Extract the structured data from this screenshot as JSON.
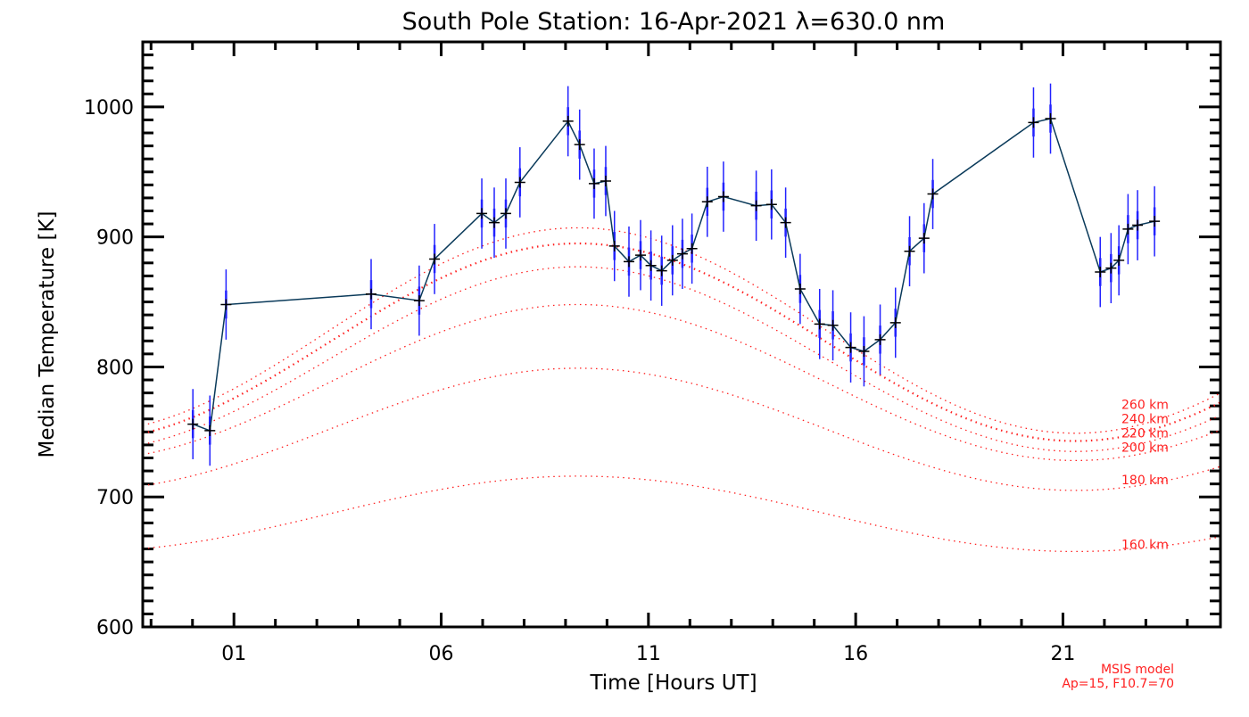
{
  "chart_data": {
    "type": "line",
    "title": "South Pole Station: 16-Apr-2021 λ=630.0 nm",
    "xlabel": "Time [Hours UT]",
    "ylabel": "Median Temperature [K]",
    "xlim": [
      -1.2,
      24.8
    ],
    "ylim": [
      600,
      1050
    ],
    "x_ticks": [
      {
        "v": 1,
        "label": "01"
      },
      {
        "v": 6,
        "label": "06"
      },
      {
        "v": 11,
        "label": "11"
      },
      {
        "v": 16,
        "label": "16"
      },
      {
        "v": 21,
        "label": "21"
      }
    ],
    "y_ticks": [
      {
        "v": 600,
        "label": "600"
      },
      {
        "v": 700,
        "label": "700"
      },
      {
        "v": 800,
        "label": "800"
      },
      {
        "v": 900,
        "label": "900"
      },
      {
        "v": 1000,
        "label": "1000"
      }
    ],
    "grid": false,
    "series": [
      {
        "name": "Median temperature",
        "color": "#0a3a5a",
        "error_color": "#2222ff",
        "x": [
          0.01,
          0.42,
          0.81,
          4.31,
          5.47,
          5.84,
          6.98,
          7.28,
          7.56,
          7.9,
          9.06,
          9.34,
          9.69,
          9.97,
          10.18,
          10.53,
          10.81,
          11.06,
          11.32,
          11.58,
          11.82,
          12.05,
          12.42,
          12.81,
          13.6,
          13.97,
          14.31,
          14.66,
          15.13,
          15.45,
          15.88,
          16.2,
          16.59,
          16.96,
          17.3,
          17.65,
          17.86,
          20.29,
          20.7,
          21.9,
          22.16,
          22.35,
          22.57,
          22.8,
          23.21
        ],
        "y": [
          756,
          751,
          848,
          856,
          851,
          883,
          918,
          911,
          918,
          942,
          989,
          971,
          941,
          943,
          893,
          881,
          886,
          878,
          874,
          882,
          887,
          891,
          927,
          931,
          924,
          925,
          911,
          860,
          833,
          832,
          815,
          812,
          821,
          834,
          889,
          899,
          933,
          988,
          991,
          873,
          876,
          882,
          906,
          909,
          912
        ],
        "error": 27
      }
    ],
    "model": {
      "color": "#ff2020",
      "annotation": [
        "MSIS model",
        "Ap=15, F10.7=70"
      ],
      "curves": [
        {
          "label": "160 km",
          "mean": 687,
          "amplitude": 29,
          "peak_hour": 9.3
        },
        {
          "label": "180 km",
          "mean": 752,
          "amplitude": 47,
          "peak_hour": 9.3
        },
        {
          "label": "200 km",
          "mean": 788,
          "amplitude": 60,
          "peak_hour": 9.3
        },
        {
          "label": "220 km",
          "mean": 806,
          "amplitude": 71,
          "peak_hour": 9.3
        },
        {
          "label": "240 km",
          "mean": 819,
          "amplitude": 76,
          "peak_hour": 9.3
        },
        {
          "label": "260 km",
          "mean": 828,
          "amplitude": 79,
          "peak_hour": 9.3
        }
      ]
    }
  }
}
